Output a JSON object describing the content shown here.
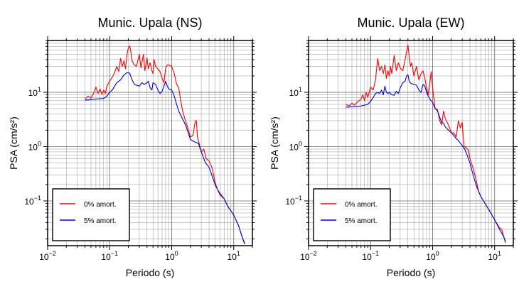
{
  "chart_data": [
    {
      "type": "line",
      "title": "Munic. Upala (NS)",
      "xlabel": "Periodo (s)",
      "ylabel": "PSA (cm/s²)",
      "xscale": "log",
      "yscale": "log",
      "xlim": [
        0.01,
        20
      ],
      "ylim": [
        0.015,
        90
      ],
      "grid": true,
      "legend_position": "bottom-left",
      "x_ticks": [
        {
          "value": 0.01,
          "base": "10",
          "exp": "−2"
        },
        {
          "value": 0.1,
          "base": "10",
          "exp": "−1"
        },
        {
          "value": 1,
          "base": "10",
          "exp": "0"
        },
        {
          "value": 10,
          "base": "10",
          "exp": "1"
        }
      ],
      "y_ticks": [
        {
          "value": 0.1,
          "base": "10",
          "exp": "−1"
        },
        {
          "value": 1,
          "base": "10",
          "exp": "0"
        },
        {
          "value": 10,
          "base": "10",
          "exp": "1"
        }
      ],
      "series": [
        {
          "name": "0% amort.",
          "color": "#ff0000",
          "points": [
            [
              0.04,
              7.5
            ],
            [
              0.045,
              8.5
            ],
            [
              0.05,
              7.8
            ],
            [
              0.055,
              9.5
            ],
            [
              0.06,
              12.5
            ],
            [
              0.065,
              9.5
            ],
            [
              0.07,
              11.5
            ],
            [
              0.075,
              9.2
            ],
            [
              0.08,
              11
            ],
            [
              0.085,
              9.5
            ],
            [
              0.09,
              13
            ],
            [
              0.1,
              16
            ],
            [
              0.11,
              19
            ],
            [
              0.12,
              23
            ],
            [
              0.13,
              30
            ],
            [
              0.14,
              24
            ],
            [
              0.15,
              42
            ],
            [
              0.16,
              30
            ],
            [
              0.17,
              38
            ],
            [
              0.18,
              27
            ],
            [
              0.19,
              50
            ],
            [
              0.2,
              65
            ],
            [
              0.21,
              72
            ],
            [
              0.22,
              55
            ],
            [
              0.23,
              38
            ],
            [
              0.25,
              32
            ],
            [
              0.27,
              30
            ],
            [
              0.3,
              50
            ],
            [
              0.32,
              28
            ],
            [
              0.35,
              50
            ],
            [
              0.37,
              25
            ],
            [
              0.4,
              43
            ],
            [
              0.42,
              27
            ],
            [
              0.45,
              35
            ],
            [
              0.48,
              25
            ],
            [
              0.5,
              22
            ],
            [
              0.52,
              40
            ],
            [
              0.55,
              30
            ],
            [
              0.6,
              27
            ],
            [
              0.65,
              24
            ],
            [
              0.7,
              18
            ],
            [
              0.75,
              15
            ],
            [
              0.8,
              28
            ],
            [
              0.85,
              32
            ],
            [
              0.9,
              32
            ],
            [
              1.0,
              30
            ],
            [
              1.1,
              22
            ],
            [
              1.2,
              14
            ],
            [
              1.3,
              12
            ],
            [
              1.4,
              7
            ],
            [
              1.5,
              4.5
            ],
            [
              1.6,
              3.5
            ],
            [
              1.8,
              2.3
            ],
            [
              2.0,
              1.5
            ],
            [
              2.2,
              1.6
            ],
            [
              2.4,
              3
            ],
            [
              2.5,
              3
            ],
            [
              2.6,
              1.5
            ],
            [
              2.8,
              1.1
            ],
            [
              3.0,
              0.8
            ],
            [
              3.3,
              0.9
            ],
            [
              3.6,
              0.6
            ],
            [
              4,
              0.55
            ],
            [
              4.5,
              0.4
            ],
            [
              5,
              0.22
            ],
            [
              5.5,
              0.16
            ],
            [
              6,
              0.14
            ],
            [
              7,
              0.11
            ],
            [
              8,
              0.08
            ],
            [
              10,
              0.055
            ],
            [
              12,
              0.035
            ],
            [
              14,
              0.02
            ],
            [
              15,
              0.017
            ]
          ]
        },
        {
          "name": "5% amort.",
          "color": "#0000dd",
          "points": [
            [
              0.04,
              7.2
            ],
            [
              0.05,
              7.3
            ],
            [
              0.06,
              7.5
            ],
            [
              0.07,
              7.6
            ],
            [
              0.08,
              7.7
            ],
            [
              0.09,
              8.5
            ],
            [
              0.1,
              10
            ],
            [
              0.11,
              11
            ],
            [
              0.12,
              13
            ],
            [
              0.13,
              15
            ],
            [
              0.15,
              17
            ],
            [
              0.17,
              21
            ],
            [
              0.19,
              23
            ],
            [
              0.21,
              22.5
            ],
            [
              0.23,
              17
            ],
            [
              0.25,
              14
            ],
            [
              0.27,
              13.5
            ],
            [
              0.3,
              13
            ],
            [
              0.33,
              15
            ],
            [
              0.36,
              14
            ],
            [
              0.4,
              15
            ],
            [
              0.42,
              16
            ],
            [
              0.45,
              12
            ],
            [
              0.48,
              11
            ],
            [
              0.5,
              15
            ],
            [
              0.55,
              14
            ],
            [
              0.6,
              11
            ],
            [
              0.65,
              9.5
            ],
            [
              0.7,
              10.5
            ],
            [
              0.75,
              13
            ],
            [
              0.8,
              16
            ],
            [
              0.85,
              13
            ],
            [
              0.9,
              11.5
            ],
            [
              1.0,
              11
            ],
            [
              1.1,
              8.5
            ],
            [
              1.2,
              6
            ],
            [
              1.3,
              4.5
            ],
            [
              1.5,
              3.2
            ],
            [
              1.7,
              2.4
            ],
            [
              2.0,
              1.35
            ],
            [
              2.4,
              1.2
            ],
            [
              2.7,
              1.15
            ],
            [
              3.0,
              0.8
            ],
            [
              3.5,
              0.5
            ],
            [
              4,
              0.42
            ],
            [
              5,
              0.2
            ],
            [
              6,
              0.13
            ],
            [
              7,
              0.11
            ],
            [
              8,
              0.08
            ],
            [
              10,
              0.055
            ],
            [
              12,
              0.035
            ],
            [
              14,
              0.02
            ],
            [
              15,
              0.016
            ]
          ]
        }
      ]
    },
    {
      "type": "line",
      "title": "Munic. Upala (EW)",
      "xlabel": "Periodo (s)",
      "ylabel": "PSA (cm/s²)",
      "xscale": "log",
      "yscale": "log",
      "xlim": [
        0.01,
        20
      ],
      "ylim": [
        0.015,
        90
      ],
      "grid": true,
      "legend_position": "bottom-left",
      "x_ticks": [
        {
          "value": 0.01,
          "base": "10",
          "exp": "−2"
        },
        {
          "value": 0.1,
          "base": "10",
          "exp": "−1"
        },
        {
          "value": 1,
          "base": "10",
          "exp": "0"
        },
        {
          "value": 10,
          "base": "10",
          "exp": "1"
        }
      ],
      "y_ticks": [
        {
          "value": 0.1,
          "base": "10",
          "exp": "−1"
        },
        {
          "value": 1,
          "base": "10",
          "exp": "0"
        },
        {
          "value": 10,
          "base": "10",
          "exp": "1"
        }
      ],
      "series": [
        {
          "name": "0% amort.",
          "color": "#ff0000",
          "points": [
            [
              0.04,
              6
            ],
            [
              0.045,
              5.6
            ],
            [
              0.05,
              6.3
            ],
            [
              0.055,
              5.8
            ],
            [
              0.06,
              6.5
            ],
            [
              0.07,
              7.5
            ],
            [
              0.075,
              9
            ],
            [
              0.08,
              7
            ],
            [
              0.085,
              10
            ],
            [
              0.09,
              8
            ],
            [
              0.1,
              12.5
            ],
            [
              0.11,
              11
            ],
            [
              0.12,
              17
            ],
            [
              0.13,
              42
            ],
            [
              0.14,
              25
            ],
            [
              0.15,
              30
            ],
            [
              0.16,
              22
            ],
            [
              0.17,
              32
            ],
            [
              0.18,
              18
            ],
            [
              0.19,
              25
            ],
            [
              0.2,
              20
            ],
            [
              0.21,
              30
            ],
            [
              0.22,
              22
            ],
            [
              0.24,
              48
            ],
            [
              0.26,
              25
            ],
            [
              0.28,
              35
            ],
            [
              0.3,
              28
            ],
            [
              0.33,
              25
            ],
            [
              0.36,
              40
            ],
            [
              0.38,
              55
            ],
            [
              0.4,
              75
            ],
            [
              0.42,
              45
            ],
            [
              0.44,
              30
            ],
            [
              0.46,
              35
            ],
            [
              0.5,
              20
            ],
            [
              0.55,
              30
            ],
            [
              0.6,
              17
            ],
            [
              0.65,
              22
            ],
            [
              0.7,
              25
            ],
            [
              0.75,
              18
            ],
            [
              0.8,
              12
            ],
            [
              0.85,
              9
            ],
            [
              0.9,
              15
            ],
            [
              0.95,
              24
            ],
            [
              1.0,
              12
            ],
            [
              1.1,
              5
            ],
            [
              1.2,
              4.8
            ],
            [
              1.3,
              3
            ],
            [
              1.4,
              2.5
            ],
            [
              1.5,
              4.5
            ],
            [
              1.6,
              3.3
            ],
            [
              1.8,
              2.5
            ],
            [
              2.0,
              1.8
            ],
            [
              2.2,
              1.8
            ],
            [
              2.4,
              1.5
            ],
            [
              2.6,
              3
            ],
            [
              2.8,
              2.2
            ],
            [
              3.0,
              2.8
            ],
            [
              3.2,
              1.0
            ],
            [
              3.5,
              0.95
            ],
            [
              3.8,
              0.85
            ],
            [
              4,
              0.6
            ],
            [
              4.5,
              0.4
            ],
            [
              5,
              0.25
            ],
            [
              5.5,
              0.15
            ],
            [
              6,
              0.12
            ],
            [
              7,
              0.09
            ],
            [
              8,
              0.07
            ],
            [
              10,
              0.045
            ],
            [
              12,
              0.032
            ],
            [
              13,
              0.03
            ],
            [
              14,
              0.022
            ],
            [
              15,
              0.018
            ]
          ]
        },
        {
          "name": "5% amort.",
          "color": "#0000dd",
          "points": [
            [
              0.04,
              5.3
            ],
            [
              0.05,
              5.4
            ],
            [
              0.06,
              5.5
            ],
            [
              0.07,
              5.6
            ],
            [
              0.08,
              5.8
            ],
            [
              0.09,
              6
            ],
            [
              0.1,
              6.8
            ],
            [
              0.11,
              8
            ],
            [
              0.12,
              9.5
            ],
            [
              0.13,
              10
            ],
            [
              0.14,
              9.5
            ],
            [
              0.15,
              11
            ],
            [
              0.16,
              9
            ],
            [
              0.17,
              13
            ],
            [
              0.18,
              10
            ],
            [
              0.19,
              9.5
            ],
            [
              0.2,
              10
            ],
            [
              0.22,
              9
            ],
            [
              0.24,
              8.8
            ],
            [
              0.26,
              10.5
            ],
            [
              0.28,
              9.5
            ],
            [
              0.3,
              12
            ],
            [
              0.33,
              15
            ],
            [
              0.36,
              16
            ],
            [
              0.38,
              20
            ],
            [
              0.4,
              21
            ],
            [
              0.42,
              16
            ],
            [
              0.45,
              14.5
            ],
            [
              0.5,
              14
            ],
            [
              0.55,
              13.5
            ],
            [
              0.6,
              11
            ],
            [
              0.65,
              10
            ],
            [
              0.7,
              14
            ],
            [
              0.75,
              13
            ],
            [
              0.8,
              10
            ],
            [
              0.85,
              8.5
            ],
            [
              0.9,
              7.5
            ],
            [
              1.0,
              6.5
            ],
            [
              1.1,
              5
            ],
            [
              1.2,
              4.5
            ],
            [
              1.3,
              3.5
            ],
            [
              1.4,
              2.8
            ],
            [
              1.5,
              2.7
            ],
            [
              1.6,
              2.3
            ],
            [
              1.8,
              2
            ],
            [
              2.0,
              1.8
            ],
            [
              2.2,
              1.6
            ],
            [
              2.4,
              1.4
            ],
            [
              2.6,
              1.3
            ],
            [
              2.8,
              1.15
            ],
            [
              3.0,
              1.05
            ],
            [
              3.3,
              0.9
            ],
            [
              3.6,
              0.7
            ],
            [
              4,
              0.5
            ],
            [
              4.5,
              0.3
            ],
            [
              5,
              0.2
            ],
            [
              5.5,
              0.15
            ],
            [
              6,
              0.12
            ],
            [
              7,
              0.09
            ],
            [
              8,
              0.07
            ],
            [
              10,
              0.045
            ],
            [
              12,
              0.03
            ],
            [
              14,
              0.022
            ],
            [
              15,
              0.017
            ]
          ]
        }
      ]
    }
  ]
}
